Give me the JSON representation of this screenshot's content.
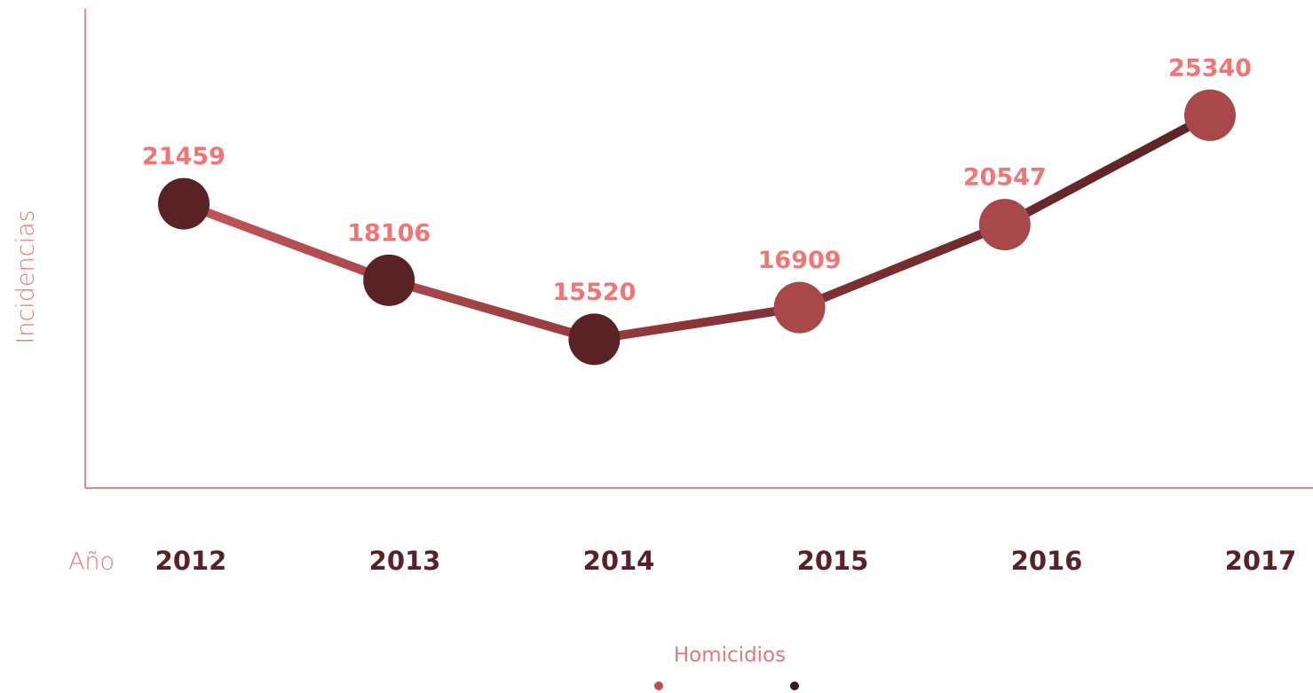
{
  "chart_data": {
    "type": "line",
    "categories": [
      "2012",
      "2013",
      "2014",
      "2015",
      "2016",
      "2017"
    ],
    "x_label": "Año",
    "y_label": "Incidencias",
    "series": [
      {
        "name": "Homicidios",
        "color": "#a8484a",
        "marker_colors": [
          "#5a2224",
          "#5a2224",
          "#5a2224",
          "#a8484a",
          "#a8484a",
          "#a8484a"
        ],
        "values": [
          21459,
          18106,
          15520,
          16909,
          20547,
          25340
        ]
      }
    ],
    "ylim": [
      9000,
      30000
    ]
  }
}
